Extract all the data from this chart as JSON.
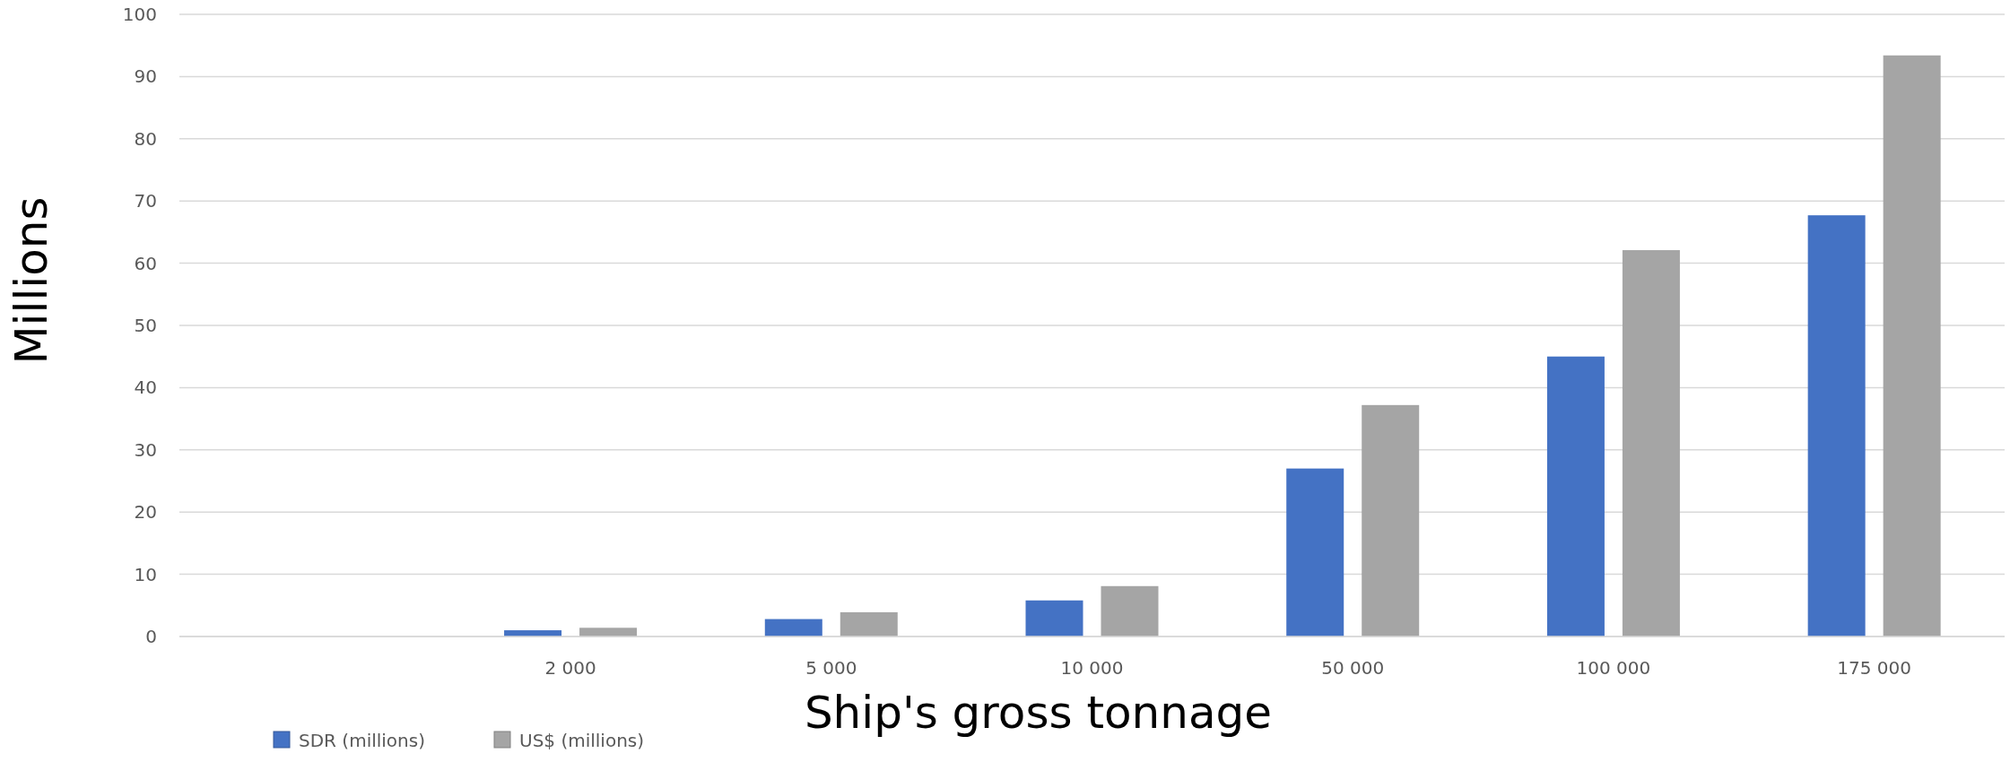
{
  "chart_data": {
    "type": "bar",
    "xlabel": "Ship's gross tonnage",
    "ylabel": "Millions",
    "categories": [
      null,
      "2 000",
      "5 000",
      "10 000",
      "50 000",
      "100 000",
      "175 000"
    ],
    "series": [
      {
        "name": "SDR (millions)",
        "color": "#4472c4",
        "values": [
          null,
          1.0,
          2.8,
          5.8,
          27,
          45,
          67.7
        ]
      },
      {
        "name": "US$ (millions)",
        "color": "#a5a5a5",
        "values": [
          null,
          1.4,
          3.9,
          8.1,
          37.2,
          62.1,
          93.4
        ]
      }
    ],
    "ylim": [
      0,
      100
    ],
    "yticks": [
      0,
      10,
      20,
      30,
      40,
      50,
      60,
      70,
      80,
      90,
      100
    ],
    "grid": "y",
    "legend": "bottom"
  }
}
